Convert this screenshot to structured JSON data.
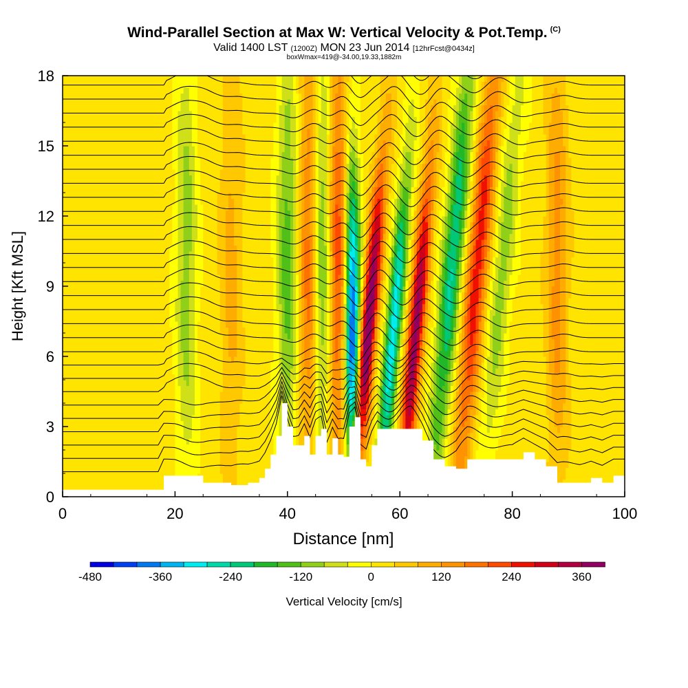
{
  "header": {
    "title": "Wind-Parallel Section at Max W: Vertical Velocity & Pot.Temp.",
    "copyright": "(C)",
    "valid_prefix": "Valid 1400 LST",
    "valid_utc": "(1200Z)",
    "valid_date": "MON 23 Jun 2014",
    "forecast": "[12hrFcst@0434z]",
    "box_info": "boxWmax=419@-34.00,19.33,1882m"
  },
  "colors": {
    "terrain": "#ffffff",
    "contour": "#000000",
    "palette": [
      "#0000e0",
      "#0040f0",
      "#0078f0",
      "#00b4f0",
      "#00ecf0",
      "#00d8a8",
      "#00c878",
      "#20b828",
      "#50c018",
      "#90d018",
      "#d0e018",
      "#ffff00",
      "#ffe400",
      "#ffc800",
      "#ffac00",
      "#ff9200",
      "#ff7200",
      "#ff4a00",
      "#f01000",
      "#d00018",
      "#b00040",
      "#900060"
    ]
  },
  "chart_data": {
    "type": "heatmap",
    "title": "Wind-Parallel Section at Max W: Vertical Velocity & Pot.Temp.",
    "xlabel": "Distance [nm]",
    "ylabel": "Height [Kft MSL]",
    "xlim": [
      0,
      100
    ],
    "ylim": [
      0,
      18
    ],
    "xticks": [
      0,
      20,
      40,
      60,
      80,
      100
    ],
    "yticks": [
      0,
      3,
      6,
      9,
      12,
      15,
      18
    ],
    "colorbar": {
      "label": "Vertical Velocity [cm/s]",
      "min": -480,
      "max": 390,
      "step": 40,
      "tick_values": [
        -480,
        -360,
        -240,
        -120,
        0,
        120,
        240,
        360
      ],
      "tick_labels": [
        "-480",
        "-360",
        "-240",
        "-120",
        "0",
        "120",
        "240",
        "360"
      ]
    },
    "terrain": {
      "x_nm": [
        0,
        17,
        18,
        20,
        25,
        28,
        30,
        33,
        35,
        36,
        37,
        38,
        39,
        40,
        41,
        42,
        43,
        44,
        45,
        46,
        47,
        48,
        49,
        50,
        51,
        52,
        53,
        54,
        55,
        56,
        57,
        58,
        60,
        62,
        64,
        66,
        68,
        70,
        72,
        74,
        76,
        78,
        80,
        82,
        84,
        86,
        88,
        90,
        92,
        94,
        96,
        98,
        100
      ],
      "height_kft": [
        0.3,
        0.3,
        0.9,
        0.9,
        0.6,
        0.6,
        0.5,
        0.6,
        0.8,
        1.2,
        1.8,
        2.6,
        4.0,
        3.0,
        2.2,
        2.2,
        2.6,
        1.8,
        2.6,
        2.9,
        1.8,
        2.5,
        1.8,
        1.7,
        3.0,
        3.4,
        1.6,
        1.3,
        2.2,
        2.9,
        2.9,
        2.9,
        2.9,
        2.9,
        2.4,
        1.6,
        1.3,
        1.2,
        1.6,
        1.6,
        1.6,
        1.6,
        1.6,
        1.9,
        1.6,
        1.3,
        0.6,
        0.6,
        0.6,
        0.8,
        0.6,
        0.9,
        0.9
      ]
    },
    "vertical_velocity_features": [
      {
        "x_nm": 22,
        "kind": "down",
        "peak_cm_s": -120
      },
      {
        "x_nm": 30,
        "kind": "up",
        "peak_cm_s": 80
      },
      {
        "x_nm": 40,
        "kind": "down",
        "peak_cm_s": -160
      },
      {
        "x_nm": 44,
        "kind": "up",
        "peak_cm_s": 200
      },
      {
        "x_nm": 46,
        "kind": "down",
        "peak_cm_s": -200
      },
      {
        "x_nm": 49,
        "kind": "up",
        "peak_cm_s": 220
      },
      {
        "x_nm": 51.5,
        "kind": "down",
        "peak_cm_s": -460
      },
      {
        "x_nm": 55,
        "kind": "up",
        "peak_cm_s": 419
      },
      {
        "x_nm": 59.5,
        "kind": "down",
        "peak_cm_s": -330
      },
      {
        "x_nm": 63.5,
        "kind": "up",
        "peak_cm_s": 370
      },
      {
        "x_nm": 69,
        "kind": "down",
        "peak_cm_s": -260
      },
      {
        "x_nm": 73.5,
        "kind": "up",
        "peak_cm_s": 250
      },
      {
        "x_nm": 78,
        "kind": "down",
        "peak_cm_s": -120
      },
      {
        "x_nm": 88,
        "kind": "up",
        "peak_cm_s": 120
      }
    ],
    "potential_temperature_contours": {
      "count": 30,
      "units": "K",
      "labeled": true
    }
  }
}
